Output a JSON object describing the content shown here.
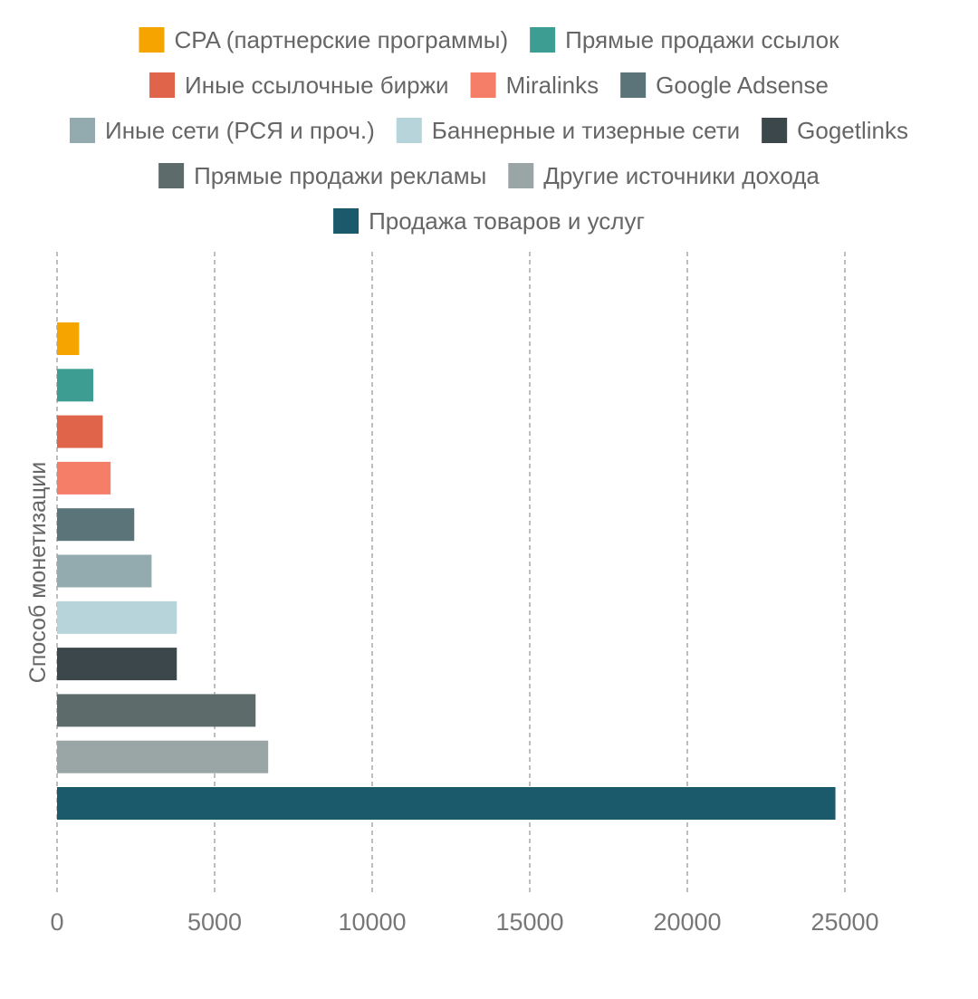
{
  "chart_data": {
    "type": "bar",
    "orientation": "horizontal",
    "title": "",
    "xlabel": "",
    "ylabel": "Способ монетизации",
    "xlim": [
      0,
      25000
    ],
    "x_ticks": [
      0,
      5000,
      10000,
      15000,
      20000,
      25000
    ],
    "grid": "vertical dashed",
    "legend_position": "top",
    "series": [
      {
        "name": "CPA (партнерские программы)",
        "value": 700,
        "color": "#F5A400"
      },
      {
        "name": "Прямые продажи ссылок",
        "value": 1150,
        "color": "#3E9D93"
      },
      {
        "name": "Иные ссылочные биржи",
        "value": 1450,
        "color": "#E0644A"
      },
      {
        "name": "Miralinks",
        "value": 1700,
        "color": "#F47E68"
      },
      {
        "name": "Google Adsense",
        "value": 2450,
        "color": "#5A7479"
      },
      {
        "name": "Иные сети (РСЯ и проч.)",
        "value": 3000,
        "color": "#93ABAE"
      },
      {
        "name": "Баннерные и тизерные сети",
        "value": 3800,
        "color": "#B6D4DA"
      },
      {
        "name": "Gogetlinks",
        "value": 3800,
        "color": "#3B474B"
      },
      {
        "name": "Прямые продажи рекламы",
        "value": 6300,
        "color": "#5E6B6B"
      },
      {
        "name": "Другие источники дохода",
        "value": 6700,
        "color": "#9AA5A6"
      },
      {
        "name": "Продажа товаров и услуг",
        "value": 24700,
        "color": "#1B5A6B"
      }
    ]
  }
}
